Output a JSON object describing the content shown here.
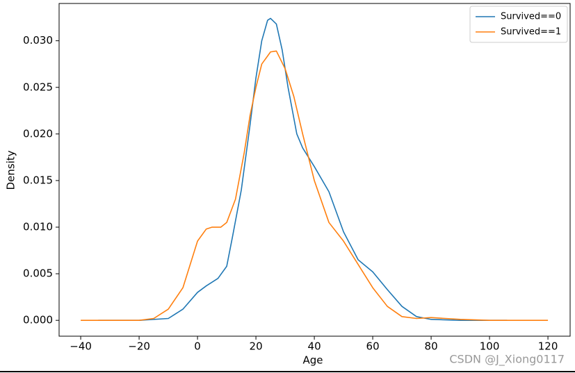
{
  "chart_data": {
    "type": "line",
    "xlabel": "Age",
    "ylabel": "Density",
    "xlim": [
      -47.4,
      127.6
    ],
    "ylim": [
      -0.0017,
      0.034
    ],
    "xticks": [
      {
        "value": -40,
        "label": "−40"
      },
      {
        "value": -20,
        "label": "−20"
      },
      0,
      20,
      40,
      60,
      80,
      100,
      120
    ],
    "yticks": [
      {
        "value": 0,
        "label": "0.000"
      },
      {
        "value": 0.005,
        "label": "0.005"
      },
      {
        "value": 0.01,
        "label": "0.010"
      },
      {
        "value": 0.015,
        "label": "0.015"
      },
      {
        "value": 0.02,
        "label": "0.020"
      },
      {
        "value": 0.025,
        "label": "0.025"
      },
      {
        "value": 0.03,
        "label": "0.030"
      }
    ],
    "legend": "upper right",
    "series": [
      {
        "name": "Survived==0",
        "color": "#1f77b4",
        "x": [
          -34,
          -20,
          -10,
          -5,
          0,
          3,
          7,
          10,
          12,
          15,
          18,
          20,
          22,
          24,
          25,
          27,
          29,
          31,
          34,
          36,
          40,
          45,
          50,
          55,
          60,
          65,
          70,
          75,
          80,
          90,
          106
        ],
        "values": [
          0,
          0,
          0.0002,
          0.0012,
          0.003,
          0.0037,
          0.0045,
          0.0058,
          0.009,
          0.014,
          0.021,
          0.026,
          0.03,
          0.0322,
          0.0324,
          0.0318,
          0.029,
          0.025,
          0.02,
          0.0185,
          0.0165,
          0.0138,
          0.0095,
          0.0065,
          0.0052,
          0.0033,
          0.0015,
          0.0004,
          0.0001,
          0,
          0
        ]
      },
      {
        "name": "Survived==1",
        "color": "#ff7f0e",
        "x": [
          -40,
          -20,
          -15,
          -10,
          -5,
          0,
          3,
          5,
          8,
          10,
          13,
          16,
          18,
          20,
          22,
          25,
          27,
          30,
          33,
          36,
          40,
          45,
          50,
          55,
          60,
          65,
          70,
          75,
          80,
          85,
          90,
          100,
          120
        ],
        "values": [
          0,
          0,
          0.0002,
          0.0012,
          0.0035,
          0.0085,
          0.0098,
          0.01,
          0.01,
          0.0105,
          0.013,
          0.018,
          0.022,
          0.025,
          0.0275,
          0.0288,
          0.0289,
          0.027,
          0.024,
          0.02,
          0.015,
          0.0105,
          0.0085,
          0.006,
          0.0035,
          0.0015,
          0.0004,
          0.0002,
          0.0003,
          0.0002,
          0.0001,
          0,
          0
        ]
      }
    ],
    "watermark": "CSDN @J_Xiong0117"
  }
}
